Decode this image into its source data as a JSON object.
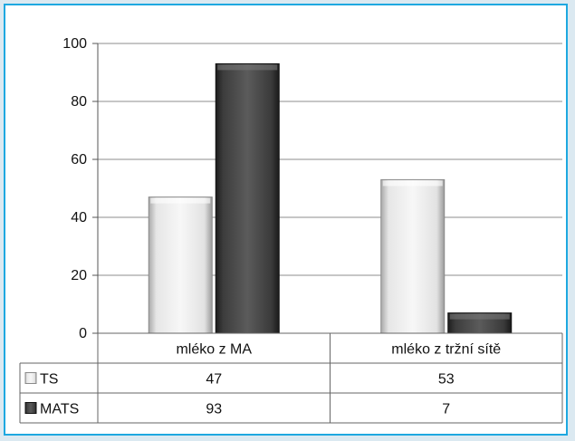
{
  "chart_data": {
    "type": "bar",
    "categories": [
      "mléko z MA",
      "mléko z tržní sítě"
    ],
    "series": [
      {
        "name": "TS",
        "values": [
          47,
          53
        ],
        "color": "#d9d9d9"
      },
      {
        "name": "MATS",
        "values": [
          93,
          7
        ],
        "color": "#3a3a3a"
      }
    ],
    "ylim": [
      0,
      100
    ],
    "yticks": [
      0,
      20,
      40,
      60,
      80,
      100
    ],
    "grid": true,
    "legend": "data-table",
    "data_table": true
  }
}
